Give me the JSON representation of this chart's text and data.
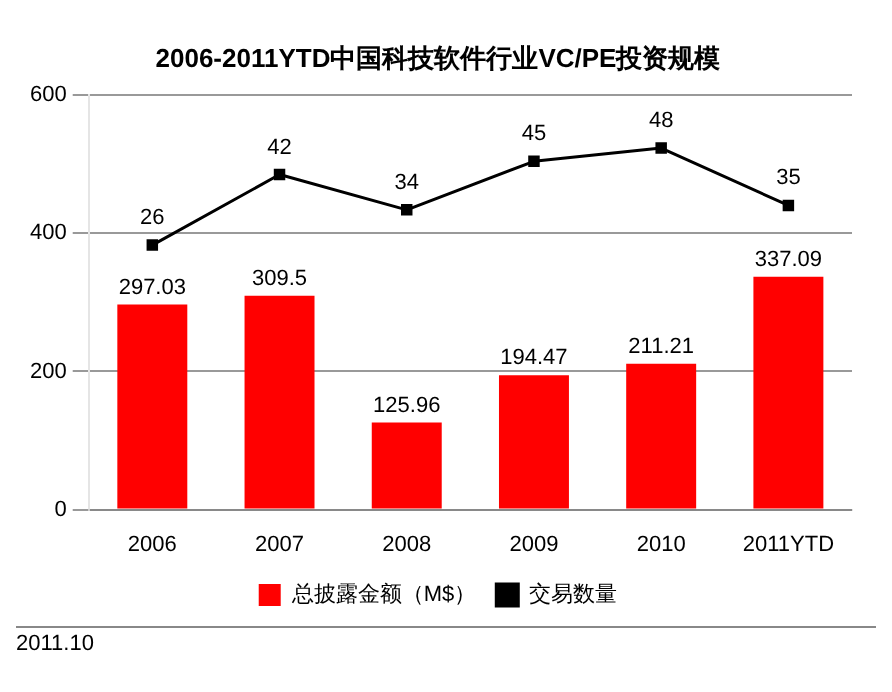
{
  "chart_data": {
    "type": "bar",
    "title": "2006-2011YTD中国科技软件行业VC/PE投资规模",
    "categories": [
      "2006",
      "2007",
      "2008",
      "2009",
      "2010",
      "2011YTD"
    ],
    "series": [
      {
        "name": "总披露金额（M$）",
        "color": "#ff0000",
        "values": [
          297.03,
          309.5,
          125.96,
          194.47,
          211.21,
          337.09
        ]
      },
      {
        "name": "交易数量",
        "type": "line",
        "axis": "y2",
        "color": "#000000",
        "values": [
          26,
          42,
          34,
          45,
          48,
          35
        ]
      }
    ],
    "ylim": [
      0,
      600
    ],
    "yticks": [
      0,
      200,
      400,
      600
    ],
    "y2lim": [
      -34,
      60
    ],
    "grid": "y",
    "legend": "bottom",
    "marker": "square",
    "line_style": "solid",
    "data_labels": true,
    "annotations": [
      "2011.10"
    ]
  }
}
